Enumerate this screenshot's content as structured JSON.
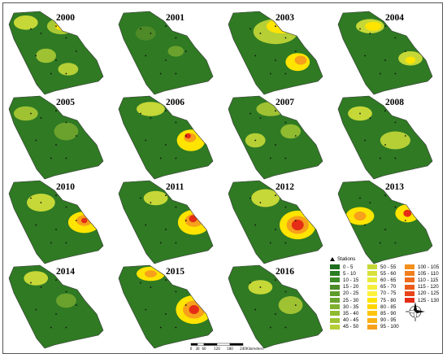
{
  "panels": [
    {
      "year": "2000",
      "blobs": [
        [
          0.55,
          0.22,
          0.14,
          0.09,
          "#a9c934"
        ],
        [
          0.58,
          0.22,
          0.09,
          0.05,
          "#ffe400"
        ],
        [
          0.6,
          0.2,
          0.05,
          0.03,
          "#e52d16"
        ],
        [
          0.2,
          0.18,
          0.12,
          0.08,
          "#c6d837"
        ],
        [
          0.4,
          0.55,
          0.1,
          0.08,
          "#9fc233"
        ],
        [
          0.62,
          0.7,
          0.1,
          0.07,
          "#b5cf35"
        ]
      ]
    },
    {
      "year": "2001",
      "blobs": [
        [
          0.3,
          0.3,
          0.1,
          0.08,
          "#4e8a27"
        ],
        [
          0.6,
          0.5,
          0.08,
          0.06,
          "#6aa22d"
        ]
      ]
    },
    {
      "year": "2003",
      "blobs": [
        [
          0.5,
          0.28,
          0.22,
          0.14,
          "#b5cf35"
        ],
        [
          0.55,
          0.22,
          0.14,
          0.08,
          "#ffe400"
        ],
        [
          0.6,
          0.2,
          0.06,
          0.04,
          "#e52d16"
        ],
        [
          0.72,
          0.62,
          0.12,
          0.1,
          "#ffe400"
        ],
        [
          0.75,
          0.6,
          0.06,
          0.05,
          "#f7a01b"
        ]
      ]
    },
    {
      "year": "2004",
      "blobs": [
        [
          0.35,
          0.22,
          0.14,
          0.08,
          "#c6d837"
        ],
        [
          0.38,
          0.22,
          0.08,
          0.05,
          "#ffe400"
        ],
        [
          0.75,
          0.58,
          0.12,
          0.08,
          "#c6d837"
        ],
        [
          0.75,
          0.6,
          0.05,
          0.04,
          "#ffe400"
        ]
      ]
    },
    {
      "year": "2005",
      "blobs": [
        [
          0.2,
          0.25,
          0.12,
          0.08,
          "#9fc233"
        ],
        [
          0.6,
          0.45,
          0.12,
          0.1,
          "#6aa22d"
        ]
      ]
    },
    {
      "year": "2006",
      "blobs": [
        [
          0.35,
          0.2,
          0.14,
          0.08,
          "#c6d837"
        ],
        [
          0.75,
          0.55,
          0.14,
          0.12,
          "#ffe400"
        ],
        [
          0.74,
          0.52,
          0.06,
          0.05,
          "#f7a01b"
        ],
        [
          0.72,
          0.5,
          0.03,
          0.03,
          "#e52d16"
        ]
      ]
    },
    {
      "year": "2007",
      "blobs": [
        [
          0.45,
          0.2,
          0.14,
          0.08,
          "#9fc233"
        ],
        [
          0.3,
          0.55,
          0.1,
          0.08,
          "#b5cf35"
        ],
        [
          0.65,
          0.45,
          0.1,
          0.08,
          "#8fbb31"
        ]
      ]
    },
    {
      "year": "2008",
      "blobs": [
        [
          0.25,
          0.25,
          0.12,
          0.08,
          "#c6d837"
        ],
        [
          0.6,
          0.55,
          0.15,
          0.1,
          "#b5cf35"
        ]
      ]
    },
    {
      "year": "2010",
      "blobs": [
        [
          0.35,
          0.3,
          0.14,
          0.1,
          "#c6d837"
        ],
        [
          0.78,
          0.52,
          0.16,
          0.12,
          "#ffe400"
        ],
        [
          0.78,
          0.5,
          0.08,
          0.06,
          "#f7a01b"
        ],
        [
          0.78,
          0.5,
          0.03,
          0.03,
          "#e52d16"
        ]
      ]
    },
    {
      "year": "2011",
      "blobs": [
        [
          0.4,
          0.25,
          0.12,
          0.08,
          "#c6d837"
        ],
        [
          0.78,
          0.52,
          0.16,
          0.14,
          "#ffe400"
        ],
        [
          0.78,
          0.5,
          0.09,
          0.07,
          "#f7a01b"
        ],
        [
          0.77,
          0.48,
          0.04,
          0.04,
          "#e52d16"
        ]
      ]
    },
    {
      "year": "2012",
      "blobs": [
        [
          0.4,
          0.25,
          0.14,
          0.1,
          "#c6d837"
        ],
        [
          0.72,
          0.55,
          0.18,
          0.16,
          "#ffe400"
        ],
        [
          0.72,
          0.55,
          0.11,
          0.1,
          "#f7a01b"
        ],
        [
          0.72,
          0.55,
          0.06,
          0.06,
          "#e52d16"
        ]
      ]
    },
    {
      "year": "2013",
      "blobs": [
        [
          0.25,
          0.45,
          0.14,
          0.1,
          "#ffe400"
        ],
        [
          0.25,
          0.45,
          0.06,
          0.05,
          "#f7a01b"
        ],
        [
          0.72,
          0.42,
          0.12,
          0.1,
          "#ffe400"
        ],
        [
          0.72,
          0.42,
          0.04,
          0.04,
          "#e52d16"
        ]
      ]
    },
    {
      "year": "2014",
      "blobs": [
        [
          0.3,
          0.2,
          0.12,
          0.08,
          "#c6d837"
        ],
        [
          0.6,
          0.45,
          0.1,
          0.08,
          "#6aa22d"
        ]
      ]
    },
    {
      "year": "2015",
      "blobs": [
        [
          0.35,
          0.15,
          0.14,
          0.08,
          "#ffe400"
        ],
        [
          0.35,
          0.15,
          0.06,
          0.04,
          "#f7a01b"
        ],
        [
          0.78,
          0.55,
          0.18,
          0.16,
          "#ffe400"
        ],
        [
          0.78,
          0.55,
          0.11,
          0.1,
          "#f7a01b"
        ],
        [
          0.78,
          0.55,
          0.05,
          0.05,
          "#e52d16"
        ]
      ]
    },
    {
      "year": "2016",
      "blobs": [
        [
          0.35,
          0.3,
          0.12,
          0.08,
          "#c6d837"
        ],
        [
          0.65,
          0.5,
          0.12,
          0.1,
          "#9fc233"
        ]
      ]
    }
  ],
  "legend": {
    "stations": "Stations",
    "items": [
      {
        "label": "0 - 5",
        "color": "#1f6e1f"
      },
      {
        "label": "5 - 10",
        "color": "#2b7d22"
      },
      {
        "label": "10 - 15",
        "color": "#3d8a27"
      },
      {
        "label": "15 - 20",
        "color": "#4e8a27"
      },
      {
        "label": "20 - 25",
        "color": "#5d9b2a"
      },
      {
        "label": "25 - 30",
        "color": "#6aa22d"
      },
      {
        "label": "30 - 35",
        "color": "#7fb030"
      },
      {
        "label": "35 - 40",
        "color": "#8fbb31"
      },
      {
        "label": "40 - 45",
        "color": "#9fc233"
      },
      {
        "label": "45 - 50",
        "color": "#b5cf35"
      },
      {
        "label": "50 - 55",
        "color": "#c6d837"
      },
      {
        "label": "55 - 60",
        "color": "#d8e13a"
      },
      {
        "label": "60 - 65",
        "color": "#e8ea3b"
      },
      {
        "label": "65 - 70",
        "color": "#f4ef3c"
      },
      {
        "label": "70 - 75",
        "color": "#fff23d"
      },
      {
        "label": "75 - 80",
        "color": "#ffe400"
      },
      {
        "label": "80 - 85",
        "color": "#ffd500"
      },
      {
        "label": "85 - 90",
        "color": "#fcc40d"
      },
      {
        "label": "90 - 95",
        "color": "#f9b214"
      },
      {
        "label": "95 - 100",
        "color": "#f7a01b"
      },
      {
        "label": "100 - 105",
        "color": "#f58f1c"
      },
      {
        "label": "105 - 110",
        "color": "#f27e1c"
      },
      {
        "label": "110 - 115",
        "color": "#ef6c1b"
      },
      {
        "label": "115 - 120",
        "color": "#ec5a1a"
      },
      {
        "label": "120 - 125",
        "color": "#e84419"
      },
      {
        "label": "125 - 130",
        "color": "#e52d16"
      }
    ]
  },
  "scale": {
    "ticks": [
      "0",
      "30",
      "60",
      "120",
      "180",
      "240"
    ],
    "unit": "Kilometers"
  },
  "north_icon": "compass-rose-icon",
  "base_color": "#2f7a23"
}
